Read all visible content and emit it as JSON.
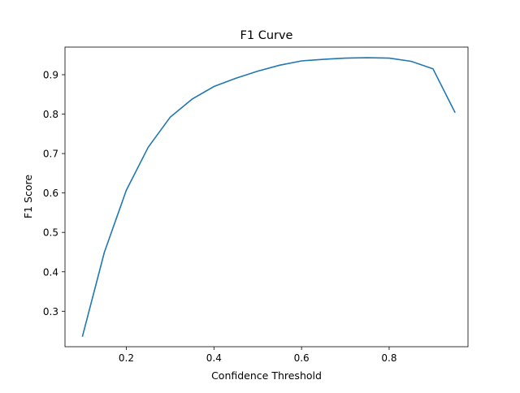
{
  "chart_data": {
    "type": "line",
    "title": "F1 Curve",
    "xlabel": "Confidence Threshold",
    "ylabel": "F1 Score",
    "xlim": [
      0.06,
      0.98
    ],
    "ylim": [
      0.21,
      0.97
    ],
    "xticks": [
      {
        "value": 0.2,
        "label": "0.2"
      },
      {
        "value": 0.4,
        "label": "0.4"
      },
      {
        "value": 0.6,
        "label": "0.6"
      },
      {
        "value": 0.8,
        "label": "0.8"
      }
    ],
    "yticks": [
      {
        "value": 0.3,
        "label": "0.3"
      },
      {
        "value": 0.4,
        "label": "0.4"
      },
      {
        "value": 0.5,
        "label": "0.5"
      },
      {
        "value": 0.6,
        "label": "0.6"
      },
      {
        "value": 0.7,
        "label": "0.7"
      },
      {
        "value": 0.8,
        "label": "0.8"
      },
      {
        "value": 0.9,
        "label": "0.9"
      }
    ],
    "grid": false,
    "legend": "none",
    "series": [
      {
        "color": "#1f77b4",
        "x": [
          0.1,
          0.15,
          0.2,
          0.25,
          0.3,
          0.35,
          0.4,
          0.45,
          0.5,
          0.55,
          0.6,
          0.65,
          0.7,
          0.75,
          0.8,
          0.85,
          0.9,
          0.95
        ],
        "y": [
          0.237,
          0.45,
          0.607,
          0.716,
          0.792,
          0.838,
          0.87,
          0.891,
          0.909,
          0.924,
          0.935,
          0.939,
          0.942,
          0.943,
          0.942,
          0.934,
          0.915,
          0.805
        ]
      }
    ]
  }
}
